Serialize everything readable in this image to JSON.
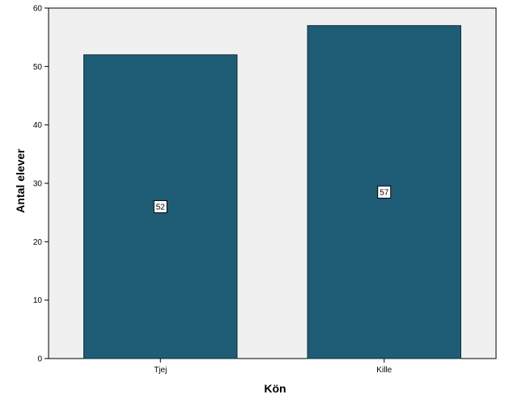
{
  "colors": {
    "plot_background": "#f0f0f0",
    "bar_fill": "#1f5c75",
    "bar_stroke": "#0f2c38",
    "axis": "#000000",
    "label_box": "#ffffff"
  },
  "chart_data": {
    "type": "bar",
    "categories": [
      "Tjej",
      "Kille"
    ],
    "values": [
      52,
      57
    ],
    "data_labels": [
      "52",
      "57"
    ],
    "title": "",
    "xlabel": "Kön",
    "ylabel": "Antal elever",
    "ylim": [
      0,
      60
    ],
    "yticks": [
      "0",
      "10",
      "20",
      "30",
      "40",
      "50",
      "60"
    ],
    "grid": false
  }
}
